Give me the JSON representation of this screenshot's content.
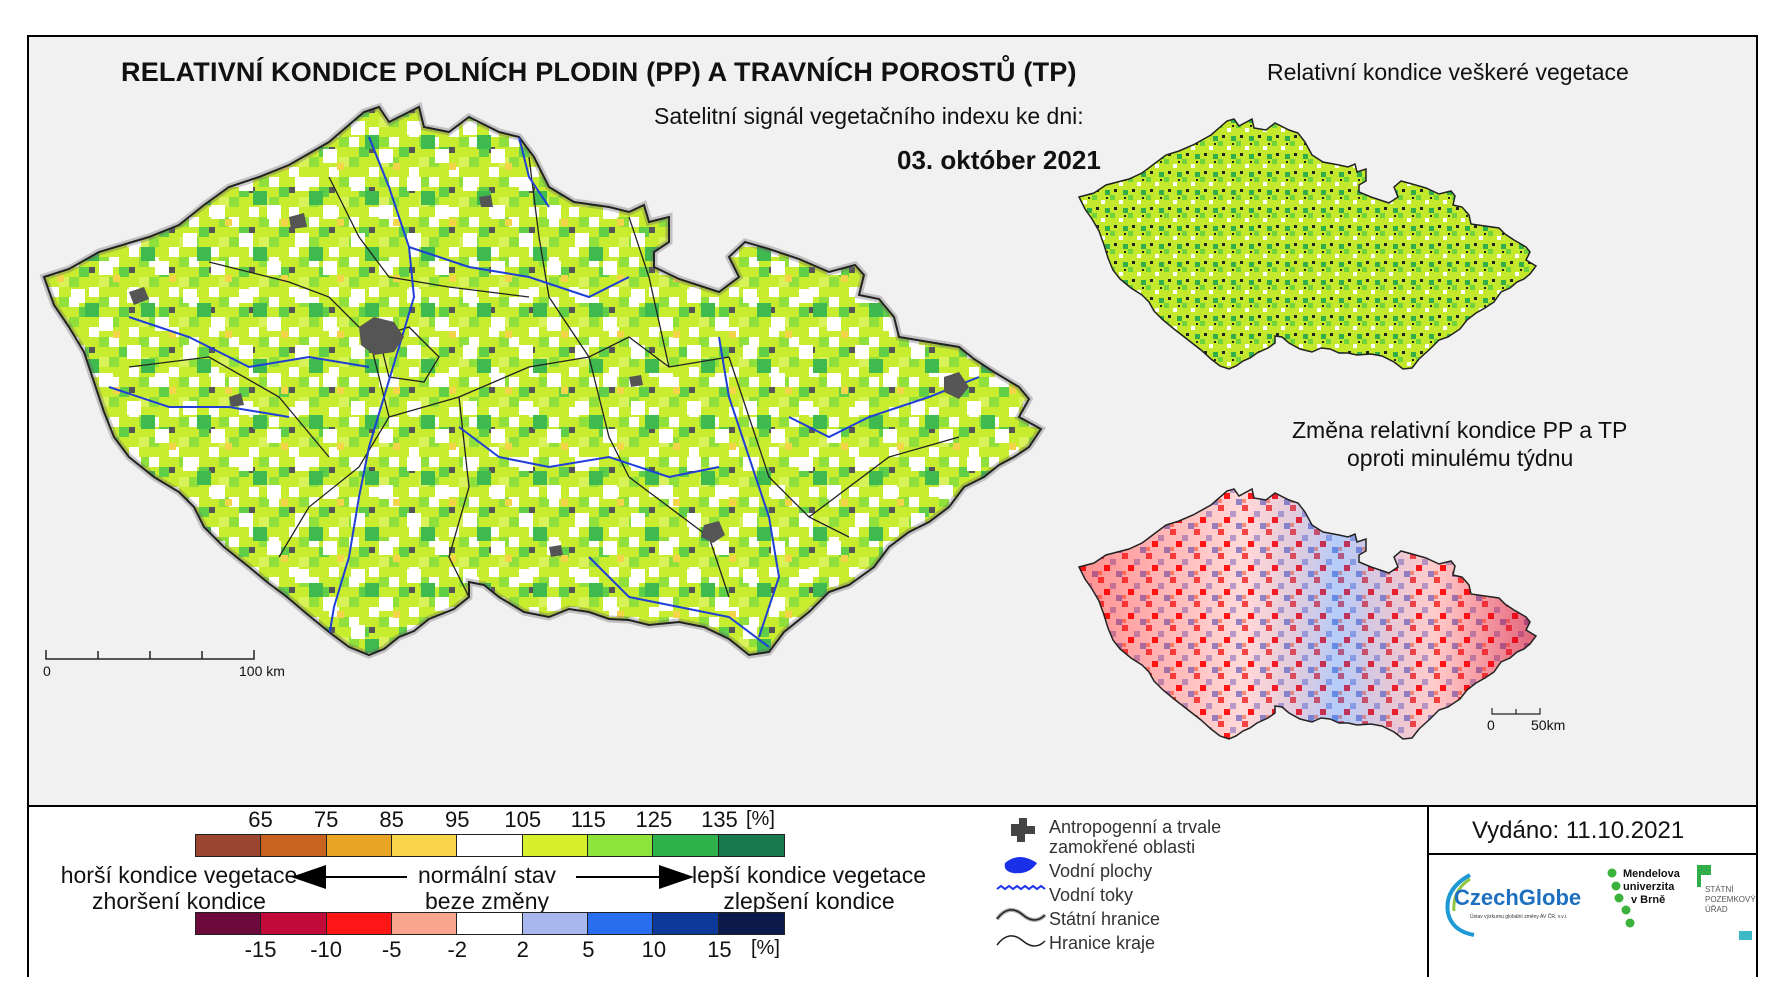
{
  "title": "RELATIVNÍ KONDICE POLNÍCH PLODIN (PP) A TRAVNÍCH POROSTŮ (TP)",
  "subtitle": "Satelitní signál vegetačního indexu ke dni:",
  "date": "03. október 2021",
  "main_map": {
    "scalebar": {
      "start": "0",
      "end": "100 km"
    }
  },
  "inset_vegetation": {
    "title": "Relativní kondice veškeré vegetace"
  },
  "inset_change": {
    "title_line1": "Změna relativní kondice PP a TP",
    "title_line2": "oproti minulému týdnu",
    "scalebar": {
      "start": "0",
      "end": "50km"
    }
  },
  "legend": {
    "condition_scale": {
      "unit": "[%]",
      "ticks": [
        "65",
        "75",
        "85",
        "95",
        "105",
        "115",
        "125",
        "135"
      ],
      "colors": [
        "#9a4631",
        "#c8631f",
        "#e8a526",
        "#f8d548",
        "#ffffff",
        "#d6f02a",
        "#8ee43a",
        "#2fb24c",
        "#167a4d"
      ]
    },
    "change_scale": {
      "unit": "[%]",
      "ticks": [
        "-15",
        "-10",
        "-5",
        "-2",
        "2",
        "5",
        "10",
        "15"
      ],
      "colors": [
        "#6b0a3b",
        "#c20a3a",
        "#ff1616",
        "#f9a48c",
        "#ffffff",
        "#a8b7ee",
        "#2a6ef0",
        "#0d3a9a",
        "#0b1a4a"
      ]
    },
    "worse_line1": "horší kondice vegetace",
    "worse_line2": "zhoršení kondice",
    "normal_line1": "normální stav",
    "normal_line2": "beze změny",
    "better_line1": "lepší kondice vegetace",
    "better_line2": "zlepšení kondice"
  },
  "map_legend": {
    "urban_line1": "Antropogenní a trvale",
    "urban_line2": "zamokřené oblasti",
    "water_bodies": "Vodní plochy",
    "rivers": "Vodní toky",
    "state_border": "Státní hranice",
    "region_border": "Hranice kraje"
  },
  "issued": "Vydáno: 11.10.2021",
  "logos": {
    "czechglobe": "CzechGlobe",
    "czechglobe_sub": "Ústav výzkumu globální změny AV ČR, v.v.i.",
    "mendel_line1": "Mendelova",
    "mendel_line2": "univerzita",
    "mendel_line3": "v Brně",
    "spu_line1": "STÁTNÍ",
    "spu_line2": "POZEMKOVÝ",
    "spu_line3": "ÚŘAD"
  },
  "colors": {
    "frame_bg": "#f1f1f1",
    "river": "#1f3fd8",
    "urban": "#555555"
  }
}
